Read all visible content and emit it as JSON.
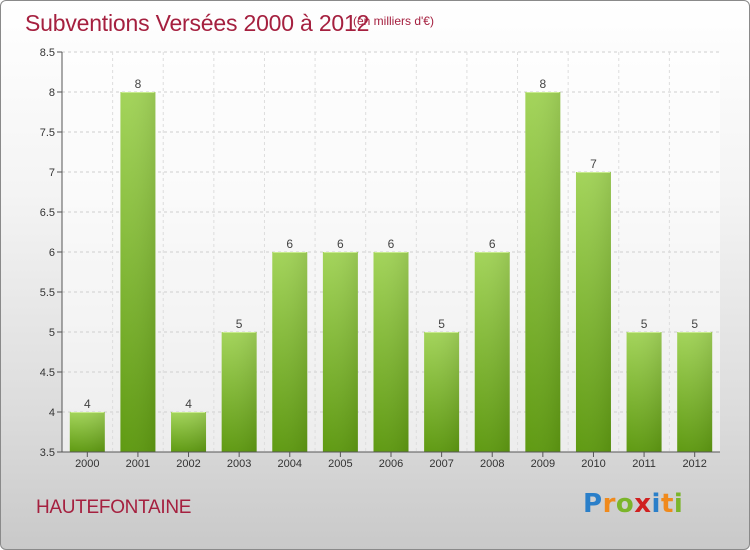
{
  "title": "Subventions Versées 2000 à 2012",
  "unit": "(en milliers d'€)",
  "commune": "HAUTEFONTAINE",
  "logo": {
    "letters": [
      "P",
      "r",
      "o",
      "x",
      "i",
      "t",
      "i"
    ],
    "colors": [
      "#2a7fc9",
      "#f08a1c",
      "#7bb52a",
      "#d02020",
      "#2a7fc9",
      "#f08a1c",
      "#7bb52a"
    ]
  },
  "chart_data": {
    "type": "bar",
    "categories": [
      "2000",
      "2001",
      "2002",
      "2003",
      "2004",
      "2005",
      "2006",
      "2007",
      "2008",
      "2009",
      "2010",
      "2011",
      "2012"
    ],
    "values": [
      4,
      8,
      4,
      5,
      6,
      6,
      6,
      5,
      6,
      8,
      7,
      5,
      5
    ],
    "data_labels": [
      "4",
      "8",
      "4",
      "5",
      "6",
      "6",
      "6",
      "5",
      "6",
      "8",
      "7",
      "5",
      "5"
    ],
    "ylim": [
      3.5,
      8.5
    ],
    "yticks": [
      3.5,
      4,
      4.5,
      5,
      5.5,
      6,
      6.5,
      7,
      7.5,
      8,
      8.5
    ],
    "ytick_labels": [
      "3.5",
      "4",
      "4.5",
      "5",
      "5.5",
      "6",
      "6.5",
      "7",
      "7.5",
      "8",
      "8.5"
    ],
    "grid": true,
    "bar_color": "#7cb82a"
  }
}
